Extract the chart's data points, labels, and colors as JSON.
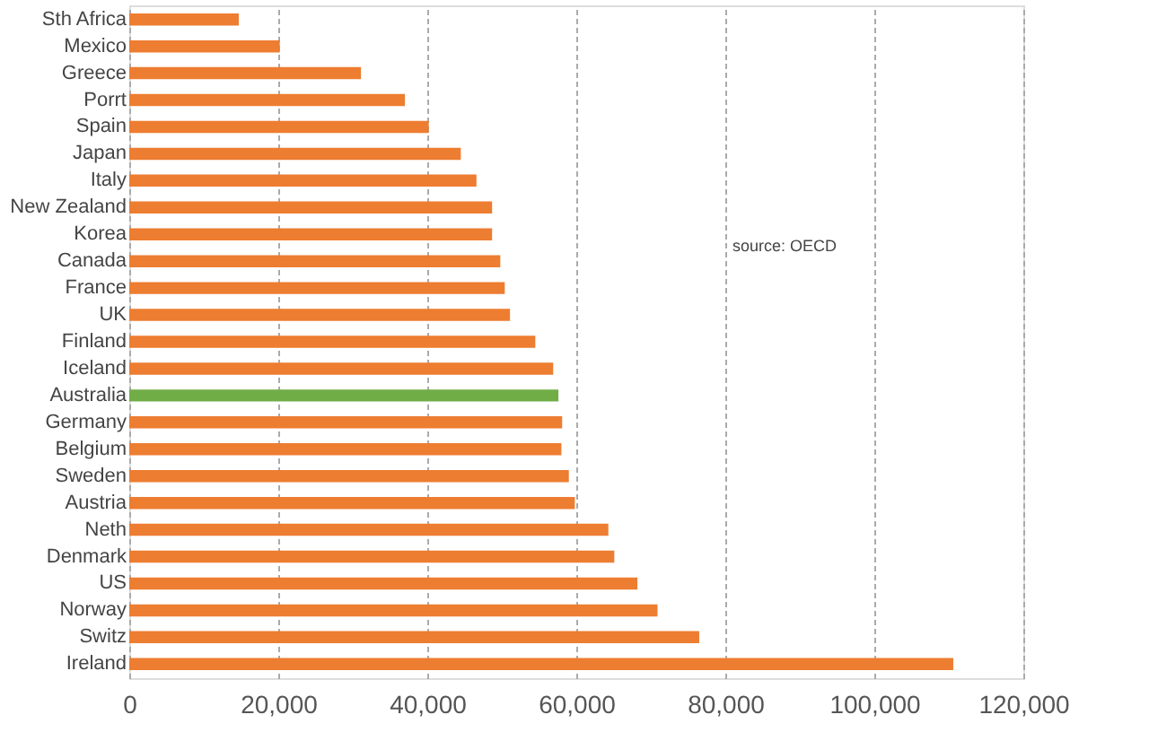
{
  "chart_data": {
    "type": "bar",
    "orientation": "horizontal",
    "categories": [
      "Sth Africa",
      "Mexico",
      "Greece",
      "Porrt",
      "Spain",
      "Japan",
      "Italy",
      "New Zealand",
      "Korea",
      "Canada",
      "France",
      "UK",
      "Finland",
      "Iceland",
      "Australia",
      "Germany",
      "Belgium",
      "Sweden",
      "Austria",
      "Neth",
      "Denmark",
      "US",
      "Norway",
      "Switz",
      "Ireland"
    ],
    "values": [
      14700,
      20200,
      31100,
      37000,
      40200,
      44500,
      46600,
      48700,
      48700,
      49800,
      50400,
      51100,
      54500,
      56900,
      57600,
      58100,
      58000,
      59000,
      59800,
      64300,
      65100,
      68200,
      70900,
      76500,
      110600
    ],
    "colors": [
      "#ed7d31",
      "#ed7d31",
      "#ed7d31",
      "#ed7d31",
      "#ed7d31",
      "#ed7d31",
      "#ed7d31",
      "#ed7d31",
      "#ed7d31",
      "#ed7d31",
      "#ed7d31",
      "#ed7d31",
      "#ed7d31",
      "#ed7d31",
      "#70ad47",
      "#ed7d31",
      "#ed7d31",
      "#ed7d31",
      "#ed7d31",
      "#ed7d31",
      "#ed7d31",
      "#ed7d31",
      "#ed7d31",
      "#ed7d31",
      "#ed7d31"
    ],
    "xlim": [
      0,
      120000
    ],
    "xticks": [
      0,
      {
        "value": 20000,
        "label": "20,000"
      },
      {
        "value": 40000,
        "label": "40,000"
      },
      {
        "value": 60000,
        "label": "60,000"
      },
      {
        "value": 80000,
        "label": "80,000"
      },
      {
        "value": 100000,
        "label": "100,000"
      },
      {
        "value": 120000,
        "label": "120,000"
      }
    ],
    "grid": "x",
    "annotations": [
      "source:  OECD"
    ]
  }
}
